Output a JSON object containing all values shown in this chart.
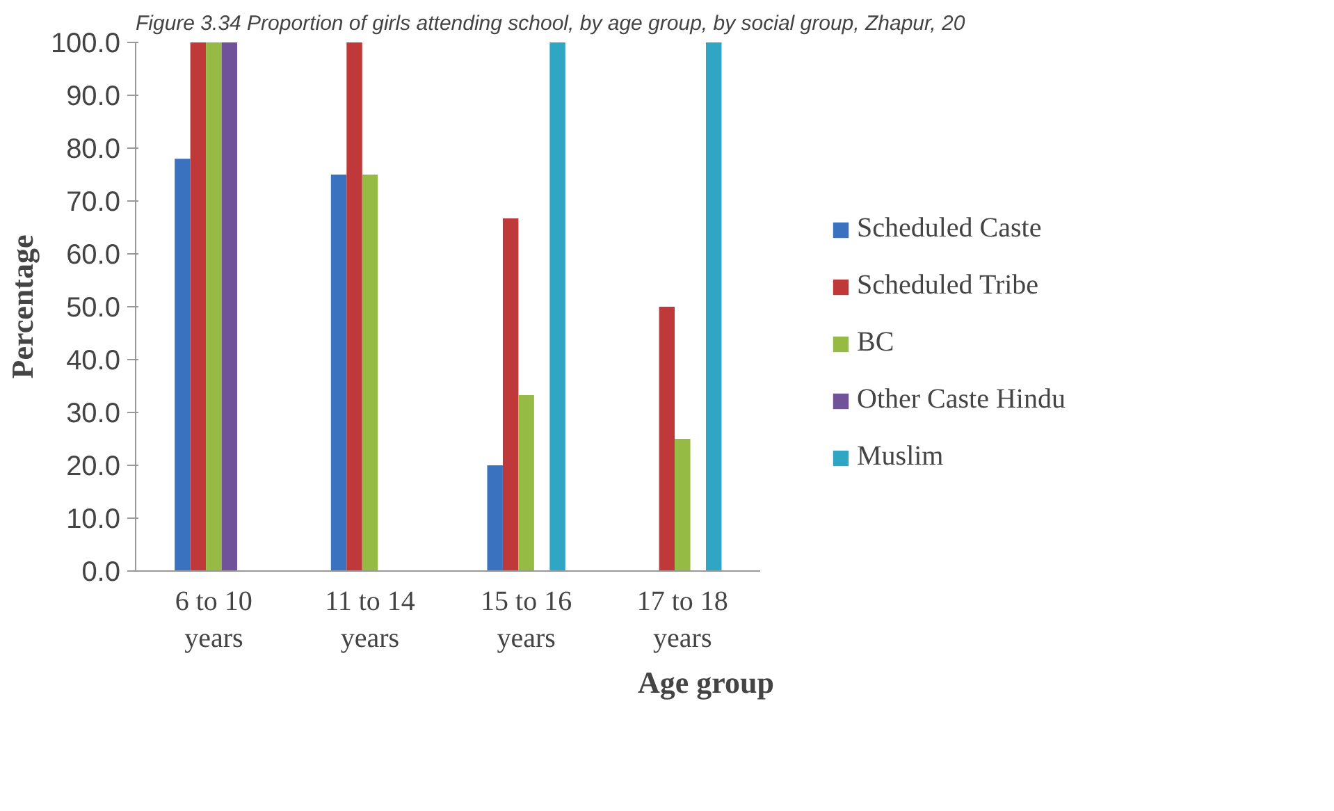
{
  "chart_data": {
    "type": "bar",
    "title": "Figure 3.34 Proportion of girls attending school, by age group, by social group, Zhapur, 20",
    "xlabel": "Age group",
    "ylabel": "Percentage",
    "categories": [
      "6 to 10\nyears",
      "11 to 14\nyears",
      "15 to 16\nyears",
      "17 to 18\nyears"
    ],
    "series": [
      {
        "name": "Scheduled Caste",
        "color": "#3a72c0",
        "values": [
          78,
          75,
          20,
          0
        ]
      },
      {
        "name": "Scheduled Tribe",
        "color": "#c0393a",
        "values": [
          100,
          100,
          66.7,
          50
        ]
      },
      {
        "name": "BC",
        "color": "#95bb45",
        "values": [
          100,
          75,
          33.3,
          25
        ]
      },
      {
        "name": "Other Caste Hindu",
        "color": "#70529a",
        "values": [
          100,
          0,
          0,
          0
        ]
      },
      {
        "name": "Muslim",
        "color": "#2ea6c4",
        "values": [
          0,
          0,
          100,
          100
        ]
      }
    ],
    "ylim": [
      0,
      100
    ],
    "yticks": [
      {
        "value": 0,
        "label": "0.0"
      },
      {
        "value": 10,
        "label": "10.0"
      },
      {
        "value": 20,
        "label": "20.0"
      },
      {
        "value": 30,
        "label": "30.0"
      },
      {
        "value": 40,
        "label": "40.0"
      },
      {
        "value": 50,
        "label": "50.0"
      },
      {
        "value": 60,
        "label": "60.0"
      },
      {
        "value": 70,
        "label": "70.0"
      },
      {
        "value": 80,
        "label": "80.0"
      },
      {
        "value": 90,
        "label": "90.0"
      },
      {
        "value": 100,
        "label": "100.0"
      }
    ],
    "grid": false,
    "legend": "right"
  }
}
